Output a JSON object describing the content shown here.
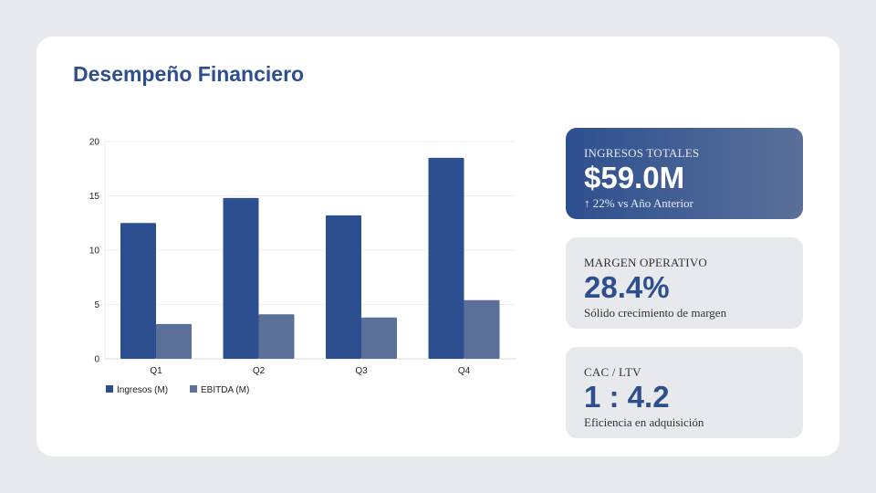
{
  "title": "Desempeño Financiero",
  "colors": {
    "ingresos": "#2e4f8f",
    "ebitda": "#5a7099",
    "accent": "#2e4f8f"
  },
  "chart_data": {
    "type": "bar",
    "categories": [
      "Q1",
      "Q2",
      "Q3",
      "Q4"
    ],
    "series": [
      {
        "name": "Ingresos (M)",
        "values": [
          12.5,
          14.8,
          13.2,
          18.5
        ],
        "color": "#2e4f8f"
      },
      {
        "name": "EBITDA (M)",
        "values": [
          3.2,
          4.1,
          3.8,
          5.4
        ],
        "color": "#5a7099"
      }
    ],
    "yticks": [
      "0",
      "5",
      "10",
      "15",
      "20"
    ],
    "ylim": [
      0,
      20
    ],
    "grid": true,
    "legend": "bottom-left"
  },
  "kpis": [
    {
      "label": "INGRESOS TOTALES",
      "value": "$59.0M",
      "sub": "↑ 22% vs Año Anterior"
    },
    {
      "label": "MARGEN OPERATIVO",
      "value": "28.4%",
      "sub": "Sólido crecimiento de margen"
    },
    {
      "label": "CAC / LTV",
      "value": "1 : 4.2",
      "sub": "Eficiencia en adquisición"
    }
  ]
}
